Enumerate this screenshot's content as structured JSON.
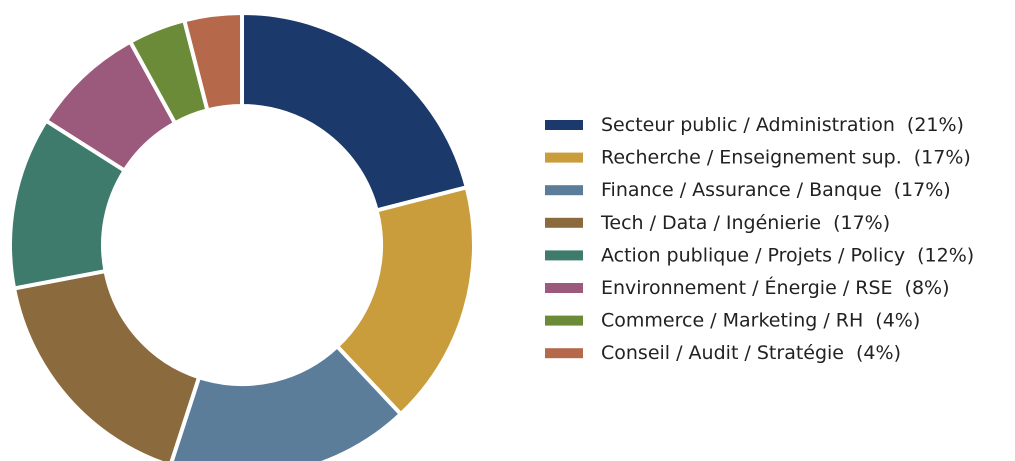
{
  "chart_data": {
    "type": "donut",
    "categories": [
      "Secteur public / Administration",
      "Recherche / Enseignement sup.",
      "Finance / Assurance / Banque",
      "Tech / Data / Ingénierie",
      "Action publique / Projets / Policy",
      "Environnement / Énergie / RSE",
      "Commerce / Marketing / RH",
      "Conseil / Audit / Stratégie"
    ],
    "values": [
      21,
      17,
      17,
      17,
      12,
      8,
      4,
      4
    ],
    "value_labels": [
      "(21%)",
      "(17%)",
      "(17%)",
      "(17%)",
      "(12%)",
      "(8%)",
      "(4%)",
      "(4%)"
    ],
    "colors": [
      "#1c396b",
      "#c99c3c",
      "#5b7d9a",
      "#8b6a3d",
      "#3e7b6c",
      "#9b5a7b",
      "#6b8b39",
      "#b5694a"
    ],
    "legend": "right"
  }
}
